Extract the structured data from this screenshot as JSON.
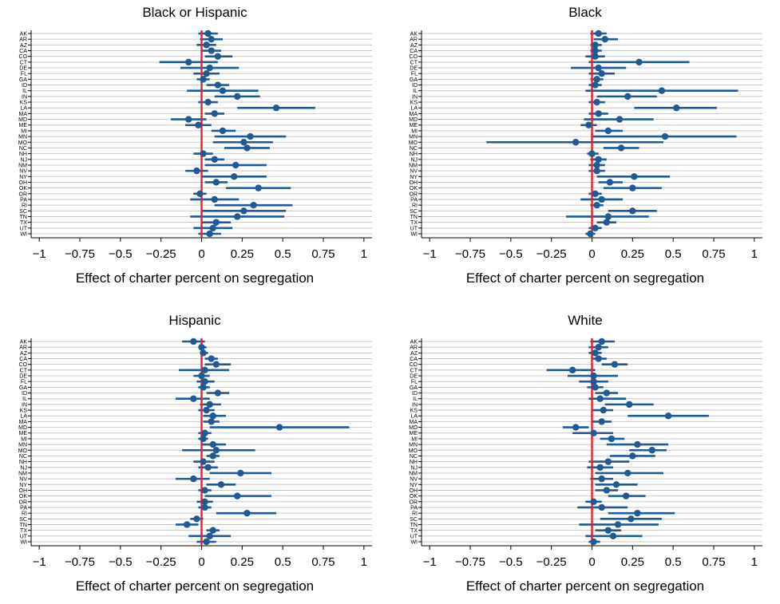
{
  "chart_data": [
    {
      "type": "scatter",
      "title": "Black or Hispanic",
      "xlabel": "Effect of charter percent on segregation",
      "ylabel": "",
      "xlim": [
        -1.05,
        1.05
      ],
      "xticks": [
        -1,
        -0.75,
        -0.5,
        -0.25,
        0,
        0.25,
        0.5,
        0.75,
        1
      ],
      "xtick_labels": [
        "−1",
        "−0.75",
        "−0.5",
        "−0.25",
        "0",
        "0.25",
        "0.5",
        "0.75",
        "1"
      ],
      "reference_line": {
        "x": 0,
        "color": "#e8202a"
      },
      "marker_color": "#1f5a96",
      "grid": "horizontal",
      "categories": [
        "AK",
        "AR",
        "AZ",
        "CA",
        "CO",
        "CT",
        "DE",
        "FL",
        "GA",
        "ID",
        "IL",
        "IN",
        "KS",
        "LA",
        "MA",
        "MD",
        "ME",
        "MI",
        "MN",
        "MO",
        "NC",
        "NH",
        "NJ",
        "NM",
        "NV",
        "NY",
        "OH",
        "OK",
        "OR",
        "PA",
        "RI",
        "SC",
        "TN",
        "TX",
        "UT",
        "WI"
      ],
      "estimates": [
        0.04,
        0.06,
        0.03,
        0.06,
        0.1,
        -0.08,
        0.05,
        0.03,
        0.01,
        0.1,
        0.13,
        0.22,
        0.04,
        0.46,
        0.08,
        -0.08,
        -0.02,
        0.13,
        0.3,
        0.26,
        0.28,
        0.01,
        0.08,
        0.21,
        -0.03,
        0.2,
        0.09,
        0.35,
        -0.01,
        0.08,
        0.32,
        0.26,
        0.22,
        0.09,
        0.07,
        0.05
      ],
      "ci_low": [
        -0.02,
        -0.01,
        -0.03,
        0.0,
        0.02,
        -0.26,
        -0.13,
        -0.05,
        -0.03,
        0.03,
        -0.09,
        0.08,
        -0.02,
        0.22,
        0.02,
        -0.19,
        -0.1,
        0.06,
        0.08,
        0.07,
        0.14,
        -0.05,
        0.02,
        0.02,
        -0.1,
        0.0,
        0.02,
        0.15,
        -0.05,
        -0.07,
        0.08,
        0.0,
        -0.07,
        0.0,
        -0.05,
        -0.02
      ],
      "ci_high": [
        0.1,
        0.13,
        0.09,
        0.12,
        0.19,
        0.1,
        0.23,
        0.11,
        0.05,
        0.17,
        0.35,
        0.36,
        0.1,
        0.7,
        0.14,
        0.03,
        0.06,
        0.21,
        0.52,
        0.44,
        0.42,
        0.07,
        0.14,
        0.4,
        0.04,
        0.4,
        0.16,
        0.55,
        0.03,
        0.23,
        0.56,
        0.52,
        0.51,
        0.18,
        0.19,
        0.12
      ]
    },
    {
      "type": "scatter",
      "title": "Black",
      "xlabel": "Effect of charter percent on segregation",
      "ylabel": "",
      "xlim": [
        -1.05,
        1.05
      ],
      "xticks": [
        -1,
        -0.75,
        -0.5,
        -0.25,
        0,
        0.25,
        0.5,
        0.75,
        1
      ],
      "xtick_labels": [
        "−1",
        "−0.75",
        "−0.5",
        "−0.25",
        "0",
        "0.25",
        "0.5",
        "0.75",
        "1"
      ],
      "reference_line": {
        "x": 0,
        "color": "#e8202a"
      },
      "marker_color": "#1f5a96",
      "grid": "horizontal",
      "categories": [
        "AK",
        "AR",
        "AZ",
        "CA",
        "CO",
        "CT",
        "DE",
        "FL",
        "GA",
        "ID",
        "IL",
        "IN",
        "KS",
        "LA",
        "MA",
        "MD",
        "ME",
        "MI",
        "MN",
        "MO",
        "NC",
        "NH",
        "NJ",
        "NM",
        "NV",
        "NY",
        "OH",
        "OK",
        "OR",
        "PA",
        "RI",
        "SC",
        "TN",
        "TX",
        "UT",
        "WI"
      ],
      "estimates": [
        0.04,
        0.08,
        0.02,
        0.02,
        0.02,
        0.29,
        0.04,
        0.06,
        0.03,
        0.02,
        0.43,
        0.22,
        0.03,
        0.52,
        0.04,
        0.17,
        -0.02,
        0.1,
        0.45,
        -0.1,
        0.18,
        0.0,
        0.04,
        0.03,
        0.03,
        0.26,
        0.11,
        0.25,
        0.02,
        0.06,
        0.03,
        0.25,
        0.1,
        0.09,
        0.02,
        -0.01
      ],
      "ci_low": [
        -0.01,
        0.01,
        -0.01,
        -0.01,
        -0.04,
        -0.02,
        -0.13,
        -0.02,
        -0.01,
        -0.02,
        -0.04,
        0.03,
        -0.02,
        0.26,
        -0.02,
        -0.05,
        -0.07,
        0.02,
        0.0,
        -0.65,
        0.07,
        -0.03,
        -0.01,
        -0.02,
        -0.02,
        0.03,
        0.04,
        0.07,
        -0.02,
        -0.07,
        -0.01,
        0.1,
        -0.16,
        0.03,
        -0.02,
        -0.04
      ],
      "ci_high": [
        0.09,
        0.16,
        0.06,
        0.06,
        0.08,
        0.6,
        0.21,
        0.14,
        0.07,
        0.06,
        0.9,
        0.4,
        0.08,
        0.77,
        0.1,
        0.38,
        0.03,
        0.19,
        0.89,
        0.44,
        0.29,
        0.04,
        0.09,
        0.08,
        0.08,
        0.48,
        0.19,
        0.43,
        0.06,
        0.19,
        0.07,
        0.4,
        0.35,
        0.15,
        0.06,
        0.02
      ]
    },
    {
      "type": "scatter",
      "title": "Hispanic",
      "xlabel": "Effect of charter percent on segregation",
      "ylabel": "",
      "xlim": [
        -1.05,
        1.05
      ],
      "xticks": [
        -1,
        -0.75,
        -0.5,
        -0.25,
        0,
        0.25,
        0.5,
        0.75,
        1
      ],
      "xtick_labels": [
        "−1",
        "−0.75",
        "−0.5",
        "−0.25",
        "0",
        "0.25",
        "0.5",
        "0.75",
        "1"
      ],
      "reference_line": {
        "x": 0,
        "color": "#e8202a"
      },
      "marker_color": "#1f5a96",
      "grid": "horizontal",
      "categories": [
        "AK",
        "AR",
        "AZ",
        "CA",
        "CO",
        "CT",
        "DE",
        "FL",
        "GA",
        "ID",
        "IL",
        "IN",
        "KS",
        "LA",
        "MA",
        "MD",
        "ME",
        "MI",
        "MN",
        "MO",
        "NC",
        "NH",
        "NJ",
        "NM",
        "NV",
        "NY",
        "OH",
        "OK",
        "OR",
        "PA",
        "RI",
        "SC",
        "TN",
        "TX",
        "UT",
        "WI"
      ],
      "estimates": [
        -0.05,
        0.0,
        0.01,
        0.06,
        0.09,
        0.02,
        0.0,
        0.02,
        0.01,
        0.1,
        -0.05,
        0.05,
        0.03,
        0.07,
        0.06,
        0.48,
        0.02,
        0.01,
        0.07,
        0.09,
        0.07,
        0.01,
        0.04,
        0.24,
        -0.05,
        0.12,
        0.02,
        0.22,
        0.02,
        0.02,
        0.28,
        -0.03,
        -0.09,
        0.07,
        0.05,
        0.03
      ],
      "ci_low": [
        -0.12,
        -0.02,
        -0.01,
        0.02,
        0.02,
        -0.14,
        -0.05,
        -0.03,
        -0.02,
        0.03,
        -0.16,
        -0.01,
        -0.02,
        0.01,
        0.01,
        0.05,
        -0.02,
        -0.02,
        0.0,
        -0.12,
        0.03,
        -0.05,
        -0.02,
        0.05,
        -0.16,
        0.03,
        -0.02,
        0.02,
        -0.03,
        -0.02,
        0.09,
        -0.07,
        -0.16,
        0.03,
        -0.08,
        -0.03
      ],
      "ci_high": [
        0.02,
        0.03,
        0.04,
        0.1,
        0.18,
        0.17,
        0.05,
        0.08,
        0.05,
        0.17,
        0.05,
        0.12,
        0.08,
        0.15,
        0.11,
        0.91,
        0.06,
        0.04,
        0.15,
        0.33,
        0.11,
        0.08,
        0.1,
        0.43,
        0.05,
        0.21,
        0.06,
        0.43,
        0.07,
        0.06,
        0.46,
        0.01,
        -0.02,
        0.11,
        0.18,
        0.09
      ]
    },
    {
      "type": "scatter",
      "title": "White",
      "xlabel": "Effect of charter percent on segregation",
      "ylabel": "",
      "xlim": [
        -1.05,
        1.05
      ],
      "xticks": [
        -1,
        -0.75,
        -0.5,
        -0.25,
        0,
        0.25,
        0.5,
        0.75,
        1
      ],
      "xtick_labels": [
        "−1",
        "−0.75",
        "−0.5",
        "−0.25",
        "0",
        "0.25",
        "0.5",
        "0.75",
        "1"
      ],
      "reference_line": {
        "x": 0,
        "color": "#e8202a"
      },
      "marker_color": "#1f5a96",
      "grid": "horizontal",
      "categories": [
        "AK",
        "AR",
        "AZ",
        "CA",
        "CO",
        "CT",
        "DE",
        "FL",
        "GA",
        "ID",
        "IL",
        "IN",
        "KS",
        "LA",
        "MA",
        "MD",
        "ME",
        "MI",
        "MN",
        "MO",
        "NC",
        "NH",
        "NJ",
        "NM",
        "NV",
        "NY",
        "OH",
        "OK",
        "OR",
        "PA",
        "RI",
        "SC",
        "TN",
        "TX",
        "UT",
        "WI"
      ],
      "estimates": [
        0.06,
        0.04,
        0.02,
        0.04,
        0.14,
        -0.12,
        0.01,
        0.01,
        0.02,
        0.09,
        0.05,
        0.23,
        0.07,
        0.47,
        0.06,
        -0.1,
        0.01,
        0.12,
        0.28,
        0.37,
        0.25,
        0.1,
        0.05,
        0.22,
        0.06,
        0.15,
        0.09,
        0.21,
        0.01,
        0.06,
        0.28,
        0.24,
        0.16,
        0.1,
        0.13,
        0.01
      ],
      "ci_low": [
        -0.01,
        -0.02,
        -0.02,
        0.0,
        0.06,
        -0.28,
        -0.15,
        -0.08,
        -0.03,
        0.02,
        -0.02,
        0.08,
        0.0,
        0.22,
        0.0,
        -0.18,
        -0.12,
        0.05,
        0.09,
        0.23,
        0.11,
        -0.02,
        -0.03,
        0.02,
        -0.01,
        0.02,
        0.02,
        0.1,
        -0.04,
        -0.09,
        0.1,
        0.05,
        -0.08,
        0.02,
        -0.04,
        -0.02
      ],
      "ci_high": [
        0.14,
        0.1,
        0.06,
        0.09,
        0.22,
        0.02,
        0.16,
        0.1,
        0.07,
        0.16,
        0.21,
        0.38,
        0.13,
        0.72,
        0.12,
        -0.02,
        0.13,
        0.2,
        0.47,
        0.46,
        0.39,
        0.23,
        0.13,
        0.44,
        0.13,
        0.28,
        0.16,
        0.33,
        0.06,
        0.22,
        0.51,
        0.43,
        0.41,
        0.18,
        0.31,
        0.05
      ]
    }
  ]
}
